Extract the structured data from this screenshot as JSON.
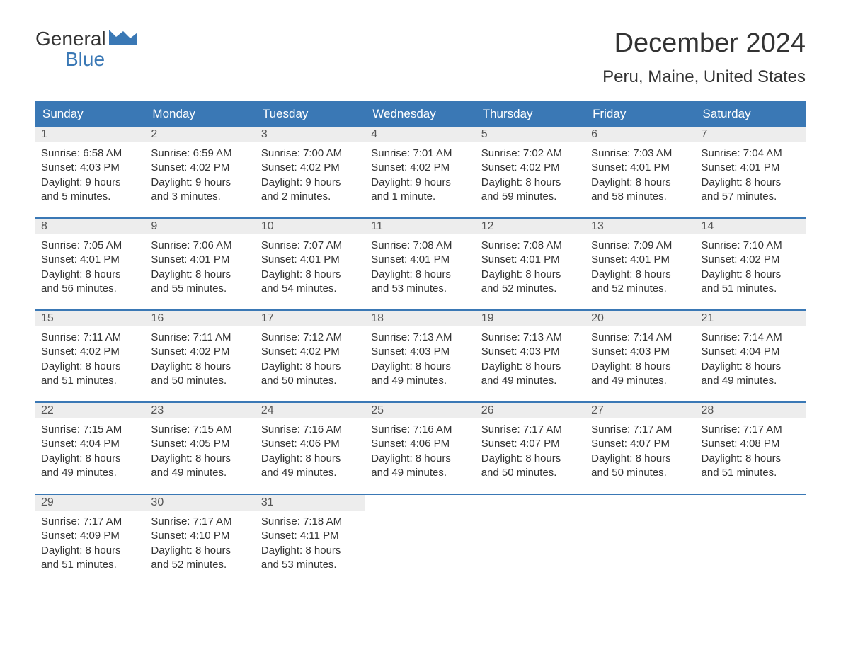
{
  "logo": {
    "line1": "General",
    "line2": "Blue",
    "icon_color": "#3a78b5"
  },
  "title": "December 2024",
  "location": "Peru, Maine, United States",
  "colors": {
    "header_bg": "#3a78b5",
    "header_text": "#ffffff",
    "daynum_bg": "#ededed",
    "text": "#333333",
    "week_border": "#3a78b5"
  },
  "day_names": [
    "Sunday",
    "Monday",
    "Tuesday",
    "Wednesday",
    "Thursday",
    "Friday",
    "Saturday"
  ],
  "weeks": [
    [
      {
        "n": "1",
        "sunrise": "Sunrise: 6:58 AM",
        "sunset": "Sunset: 4:03 PM",
        "d1": "Daylight: 9 hours",
        "d2": "and 5 minutes."
      },
      {
        "n": "2",
        "sunrise": "Sunrise: 6:59 AM",
        "sunset": "Sunset: 4:02 PM",
        "d1": "Daylight: 9 hours",
        "d2": "and 3 minutes."
      },
      {
        "n": "3",
        "sunrise": "Sunrise: 7:00 AM",
        "sunset": "Sunset: 4:02 PM",
        "d1": "Daylight: 9 hours",
        "d2": "and 2 minutes."
      },
      {
        "n": "4",
        "sunrise": "Sunrise: 7:01 AM",
        "sunset": "Sunset: 4:02 PM",
        "d1": "Daylight: 9 hours",
        "d2": "and 1 minute."
      },
      {
        "n": "5",
        "sunrise": "Sunrise: 7:02 AM",
        "sunset": "Sunset: 4:02 PM",
        "d1": "Daylight: 8 hours",
        "d2": "and 59 minutes."
      },
      {
        "n": "6",
        "sunrise": "Sunrise: 7:03 AM",
        "sunset": "Sunset: 4:01 PM",
        "d1": "Daylight: 8 hours",
        "d2": "and 58 minutes."
      },
      {
        "n": "7",
        "sunrise": "Sunrise: 7:04 AM",
        "sunset": "Sunset: 4:01 PM",
        "d1": "Daylight: 8 hours",
        "d2": "and 57 minutes."
      }
    ],
    [
      {
        "n": "8",
        "sunrise": "Sunrise: 7:05 AM",
        "sunset": "Sunset: 4:01 PM",
        "d1": "Daylight: 8 hours",
        "d2": "and 56 minutes."
      },
      {
        "n": "9",
        "sunrise": "Sunrise: 7:06 AM",
        "sunset": "Sunset: 4:01 PM",
        "d1": "Daylight: 8 hours",
        "d2": "and 55 minutes."
      },
      {
        "n": "10",
        "sunrise": "Sunrise: 7:07 AM",
        "sunset": "Sunset: 4:01 PM",
        "d1": "Daylight: 8 hours",
        "d2": "and 54 minutes."
      },
      {
        "n": "11",
        "sunrise": "Sunrise: 7:08 AM",
        "sunset": "Sunset: 4:01 PM",
        "d1": "Daylight: 8 hours",
        "d2": "and 53 minutes."
      },
      {
        "n": "12",
        "sunrise": "Sunrise: 7:08 AM",
        "sunset": "Sunset: 4:01 PM",
        "d1": "Daylight: 8 hours",
        "d2": "and 52 minutes."
      },
      {
        "n": "13",
        "sunrise": "Sunrise: 7:09 AM",
        "sunset": "Sunset: 4:01 PM",
        "d1": "Daylight: 8 hours",
        "d2": "and 52 minutes."
      },
      {
        "n": "14",
        "sunrise": "Sunrise: 7:10 AM",
        "sunset": "Sunset: 4:02 PM",
        "d1": "Daylight: 8 hours",
        "d2": "and 51 minutes."
      }
    ],
    [
      {
        "n": "15",
        "sunrise": "Sunrise: 7:11 AM",
        "sunset": "Sunset: 4:02 PM",
        "d1": "Daylight: 8 hours",
        "d2": "and 51 minutes."
      },
      {
        "n": "16",
        "sunrise": "Sunrise: 7:11 AM",
        "sunset": "Sunset: 4:02 PM",
        "d1": "Daylight: 8 hours",
        "d2": "and 50 minutes."
      },
      {
        "n": "17",
        "sunrise": "Sunrise: 7:12 AM",
        "sunset": "Sunset: 4:02 PM",
        "d1": "Daylight: 8 hours",
        "d2": "and 50 minutes."
      },
      {
        "n": "18",
        "sunrise": "Sunrise: 7:13 AM",
        "sunset": "Sunset: 4:03 PM",
        "d1": "Daylight: 8 hours",
        "d2": "and 49 minutes."
      },
      {
        "n": "19",
        "sunrise": "Sunrise: 7:13 AM",
        "sunset": "Sunset: 4:03 PM",
        "d1": "Daylight: 8 hours",
        "d2": "and 49 minutes."
      },
      {
        "n": "20",
        "sunrise": "Sunrise: 7:14 AM",
        "sunset": "Sunset: 4:03 PM",
        "d1": "Daylight: 8 hours",
        "d2": "and 49 minutes."
      },
      {
        "n": "21",
        "sunrise": "Sunrise: 7:14 AM",
        "sunset": "Sunset: 4:04 PM",
        "d1": "Daylight: 8 hours",
        "d2": "and 49 minutes."
      }
    ],
    [
      {
        "n": "22",
        "sunrise": "Sunrise: 7:15 AM",
        "sunset": "Sunset: 4:04 PM",
        "d1": "Daylight: 8 hours",
        "d2": "and 49 minutes."
      },
      {
        "n": "23",
        "sunrise": "Sunrise: 7:15 AM",
        "sunset": "Sunset: 4:05 PM",
        "d1": "Daylight: 8 hours",
        "d2": "and 49 minutes."
      },
      {
        "n": "24",
        "sunrise": "Sunrise: 7:16 AM",
        "sunset": "Sunset: 4:06 PM",
        "d1": "Daylight: 8 hours",
        "d2": "and 49 minutes."
      },
      {
        "n": "25",
        "sunrise": "Sunrise: 7:16 AM",
        "sunset": "Sunset: 4:06 PM",
        "d1": "Daylight: 8 hours",
        "d2": "and 49 minutes."
      },
      {
        "n": "26",
        "sunrise": "Sunrise: 7:17 AM",
        "sunset": "Sunset: 4:07 PM",
        "d1": "Daylight: 8 hours",
        "d2": "and 50 minutes."
      },
      {
        "n": "27",
        "sunrise": "Sunrise: 7:17 AM",
        "sunset": "Sunset: 4:07 PM",
        "d1": "Daylight: 8 hours",
        "d2": "and 50 minutes."
      },
      {
        "n": "28",
        "sunrise": "Sunrise: 7:17 AM",
        "sunset": "Sunset: 4:08 PM",
        "d1": "Daylight: 8 hours",
        "d2": "and 51 minutes."
      }
    ],
    [
      {
        "n": "29",
        "sunrise": "Sunrise: 7:17 AM",
        "sunset": "Sunset: 4:09 PM",
        "d1": "Daylight: 8 hours",
        "d2": "and 51 minutes."
      },
      {
        "n": "30",
        "sunrise": "Sunrise: 7:17 AM",
        "sunset": "Sunset: 4:10 PM",
        "d1": "Daylight: 8 hours",
        "d2": "and 52 minutes."
      },
      {
        "n": "31",
        "sunrise": "Sunrise: 7:18 AM",
        "sunset": "Sunset: 4:11 PM",
        "d1": "Daylight: 8 hours",
        "d2": "and 53 minutes."
      },
      null,
      null,
      null,
      null
    ]
  ]
}
